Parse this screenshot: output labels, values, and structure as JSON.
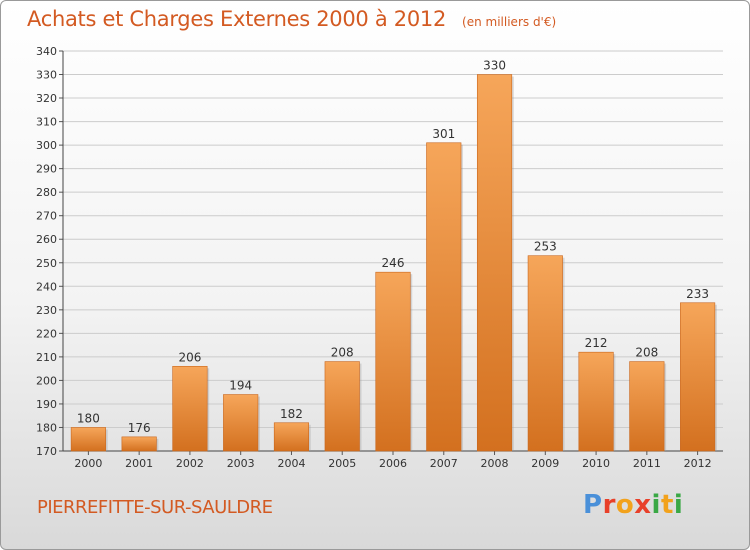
{
  "title": "Achats et Charges Externes 2000 à 2012",
  "unit_label": "(en milliers d'€)",
  "commune": "PIERREFITTE-SUR-SAULDRE",
  "logo": {
    "letters": [
      "P",
      "r",
      "o",
      "x",
      "i",
      "t",
      "i"
    ],
    "colors": [
      "#4a90d9",
      "#e8402a",
      "#f2a21c",
      "#e8402a",
      "#3aa845",
      "#f2a21c",
      "#3aa845"
    ]
  },
  "colors": {
    "bar_top": "#f6a65a",
    "bar_bottom": "#d3701f",
    "title": "#d35a22",
    "grid": "#cccccc"
  },
  "chart_data": {
    "type": "bar",
    "title": "Achats et Charges Externes 2000 à 2012",
    "categories": [
      "2000",
      "2001",
      "2002",
      "2003",
      "2004",
      "2005",
      "2006",
      "2007",
      "2008",
      "2009",
      "2010",
      "2011",
      "2012"
    ],
    "values": [
      180,
      176,
      206,
      194,
      182,
      208,
      246,
      301,
      330,
      253,
      212,
      208,
      233
    ],
    "xlabel": "",
    "ylabel": "",
    "ylim": [
      170,
      340
    ],
    "yticks": [
      170,
      180,
      190,
      200,
      210,
      220,
      230,
      240,
      250,
      260,
      270,
      280,
      290,
      300,
      310,
      320,
      330,
      340
    ],
    "grid": true,
    "data_labels": true
  }
}
